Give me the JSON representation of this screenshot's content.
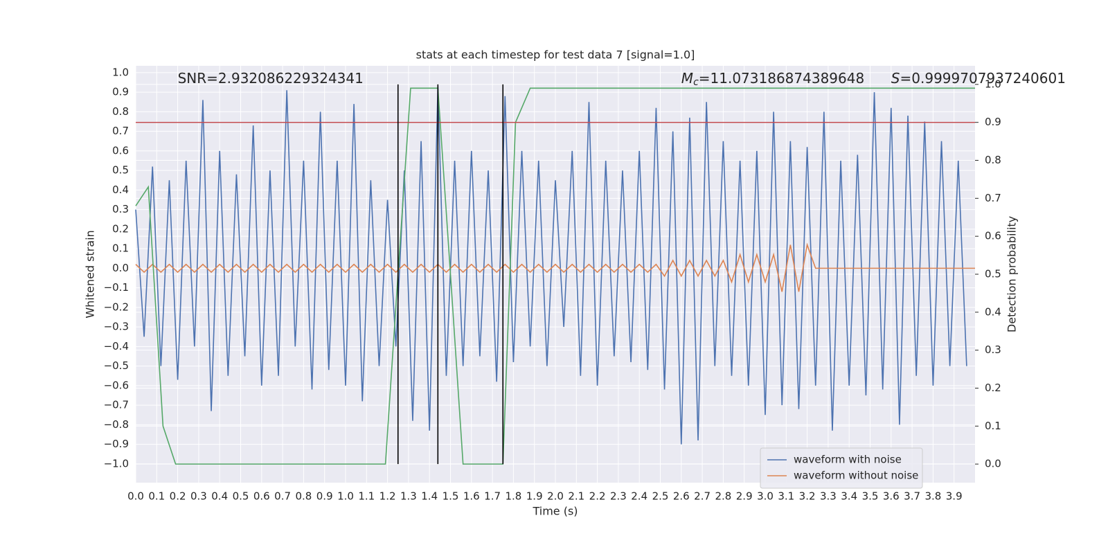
{
  "chart_data": {
    "type": "line",
    "title": "stats at each timestep for test data 7 [signal=1.0]",
    "x_label": "Time (s)",
    "y_label": "Whitened strain",
    "y2_label": "Detection probability",
    "grid": true,
    "legend": "lower right",
    "xlim": [
      0,
      4.0
    ],
    "ylim": [
      -1.096,
      1.035
    ],
    "y2lim": [
      -0.049,
      1.049
    ],
    "xticks": [
      {
        "value": 0,
        "label": "0.0"
      },
      0.1,
      0.2,
      0.3,
      0.4,
      0.5,
      0.6,
      0.7,
      0.8,
      0.9,
      {
        "value": 1,
        "label": "1.0"
      },
      1.1,
      1.2,
      1.3,
      1.4,
      1.5,
      1.6,
      1.7,
      1.8,
      1.9,
      {
        "value": 2,
        "label": "2.0"
      },
      2.1,
      2.2,
      2.3,
      2.4,
      2.5,
      2.6,
      2.7,
      2.8,
      2.9,
      {
        "value": 3,
        "label": "3.0"
      },
      3.1,
      3.2,
      3.3,
      3.4,
      3.5,
      3.6,
      3.7,
      3.8,
      3.9
    ],
    "yticks": [
      {
        "value": -1,
        "label": "−1.0"
      },
      {
        "value": -0.9,
        "label": "−0.9"
      },
      {
        "value": -0.8,
        "label": "−0.8"
      },
      {
        "value": -0.7,
        "label": "−0.7"
      },
      {
        "value": -0.6,
        "label": "−0.6"
      },
      {
        "value": -0.5,
        "label": "−0.5"
      },
      {
        "value": -0.4,
        "label": "−0.4"
      },
      {
        "value": -0.3,
        "label": "−0.3"
      },
      {
        "value": -0.2,
        "label": "−0.2"
      },
      {
        "value": -0.1,
        "label": "−0.1"
      },
      {
        "value": 0,
        "label": "0.0"
      },
      0.1,
      0.2,
      0.3,
      0.4,
      0.5,
      0.6,
      0.7,
      0.8,
      0.9,
      {
        "value": 1,
        "label": "1.0"
      }
    ],
    "y2ticks": [
      {
        "value": 0,
        "label": "0.0"
      },
      0.1,
      0.2,
      0.3,
      0.4,
      0.5,
      0.6,
      0.7,
      0.8,
      0.9,
      {
        "value": 1,
        "label": "1.0"
      }
    ],
    "series": [
      {
        "name": "waveform with noise",
        "color": "#4c72b0",
        "x": [
          0,
          0.04,
          0.08,
          0.12,
          0.16,
          0.2,
          0.24,
          0.28,
          0.32,
          0.36,
          0.4,
          0.44,
          0.48,
          0.52,
          0.56,
          0.6,
          0.64,
          0.68,
          0.72,
          0.76,
          0.8,
          0.84,
          0.88,
          0.92,
          0.96,
          1.0,
          1.04,
          1.08,
          1.12,
          1.16,
          1.2,
          1.24,
          1.28,
          1.32,
          1.36,
          1.4,
          1.44,
          1.48,
          1.52,
          1.56,
          1.6,
          1.64,
          1.68,
          1.72,
          1.76,
          1.8,
          1.84,
          1.88,
          1.92,
          1.96,
          2.0,
          2.04,
          2.08,
          2.12,
          2.16,
          2.2,
          2.24,
          2.28,
          2.32,
          2.36,
          2.4,
          2.44,
          2.48,
          2.52,
          2.56,
          2.6,
          2.64,
          2.68,
          2.72,
          2.76,
          2.8,
          2.84,
          2.88,
          2.92,
          2.96,
          3.0,
          3.04,
          3.08,
          3.12,
          3.16,
          3.2,
          3.24,
          3.28,
          3.32,
          3.36,
          3.4,
          3.44,
          3.48,
          3.52,
          3.56,
          3.6,
          3.64,
          3.68,
          3.72,
          3.76,
          3.8,
          3.84,
          3.88,
          3.92,
          3.96
        ],
        "values": [
          0.3,
          -0.35,
          0.52,
          -0.5,
          0.45,
          -0.57,
          0.55,
          -0.4,
          0.86,
          -0.73,
          0.6,
          -0.55,
          0.48,
          -0.45,
          0.73,
          -0.6,
          0.5,
          -0.55,
          0.91,
          -0.4,
          0.55,
          -0.62,
          0.8,
          -0.52,
          0.55,
          -0.6,
          0.84,
          -0.68,
          0.45,
          -0.5,
          0.35,
          -0.4,
          0.5,
          -0.78,
          0.65,
          -0.83,
          0.93,
          -0.55,
          0.55,
          -0.5,
          0.6,
          -0.45,
          0.5,
          -0.58,
          0.88,
          -0.48,
          0.6,
          -0.4,
          0.55,
          -0.5,
          0.45,
          -0.3,
          0.6,
          -0.55,
          0.85,
          -0.6,
          0.55,
          -0.45,
          0.5,
          -0.48,
          0.6,
          -0.52,
          0.82,
          -0.62,
          0.7,
          -0.9,
          0.77,
          -0.88,
          0.85,
          -0.5,
          0.65,
          -0.55,
          0.55,
          -0.6,
          0.6,
          -0.75,
          0.8,
          -0.7,
          0.65,
          -0.72,
          0.62,
          -0.6,
          0.8,
          -0.83,
          0.55,
          -0.6,
          0.58,
          -0.65,
          0.9,
          -0.62,
          0.82,
          -0.8,
          0.78,
          -0.55,
          0.75,
          -0.6,
          0.65,
          -0.5,
          0.55,
          -0.5
        ]
      },
      {
        "name": "waveform without noise",
        "color": "#dd8452",
        "x": [
          0,
          0.04,
          0.08,
          0.12,
          0.16,
          0.2,
          0.24,
          0.28,
          0.32,
          0.36,
          0.4,
          0.44,
          0.48,
          0.52,
          0.56,
          0.6,
          0.64,
          0.68,
          0.72,
          0.76,
          0.8,
          0.84,
          0.88,
          0.92,
          0.96,
          1.0,
          1.04,
          1.08,
          1.12,
          1.16,
          1.2,
          1.24,
          1.28,
          1.32,
          1.36,
          1.4,
          1.44,
          1.48,
          1.52,
          1.56,
          1.6,
          1.64,
          1.68,
          1.72,
          1.76,
          1.8,
          1.84,
          1.88,
          1.92,
          1.96,
          2.0,
          2.04,
          2.08,
          2.12,
          2.16,
          2.2,
          2.24,
          2.28,
          2.32,
          2.36,
          2.4,
          2.44,
          2.48,
          2.52,
          2.56,
          2.6,
          2.64,
          2.68,
          2.72,
          2.76,
          2.8,
          2.84,
          2.88,
          2.92,
          2.96,
          3.0,
          3.04,
          3.08,
          3.12,
          3.16,
          3.2,
          3.24,
          4.0
        ],
        "values": [
          0.02,
          -0.02,
          0.02,
          -0.02,
          0.02,
          -0.02,
          0.02,
          -0.02,
          0.02,
          -0.02,
          0.02,
          -0.02,
          0.02,
          -0.02,
          0.02,
          -0.02,
          0.02,
          -0.02,
          0.02,
          -0.02,
          0.02,
          -0.02,
          0.02,
          -0.02,
          0.02,
          -0.02,
          0.02,
          -0.02,
          0.02,
          -0.02,
          0.02,
          -0.02,
          0.02,
          -0.02,
          0.02,
          -0.02,
          0.02,
          -0.02,
          0.02,
          -0.02,
          0.02,
          -0.02,
          0.02,
          -0.02,
          0.02,
          -0.02,
          0.02,
          -0.02,
          0.02,
          -0.02,
          0.02,
          -0.02,
          0.02,
          -0.02,
          0.02,
          -0.02,
          0.02,
          -0.02,
          0.02,
          -0.02,
          0.02,
          -0.02,
          0.02,
          -0.04,
          0.04,
          -0.04,
          0.04,
          -0.04,
          0.04,
          -0.04,
          0.04,
          -0.07,
          0.07,
          -0.07,
          0.07,
          -0.07,
          0.07,
          -0.12,
          0.12,
          -0.12,
          0.12,
          0,
          0
        ]
      },
      {
        "color": "#55a868",
        "axis": "y2",
        "x": [
          0,
          0.06,
          0.13,
          0.19,
          1.19,
          1.25,
          1.31,
          1.38,
          1.44,
          1.5,
          1.56,
          1.69,
          1.75,
          1.81,
          1.88,
          4.0
        ],
        "values": [
          0.68,
          0.73,
          0.1,
          0,
          0,
          0.5,
          0.99,
          0.99,
          0.99,
          0.5,
          0,
          0,
          0,
          0.9,
          0.99,
          0.99
        ]
      }
    ],
    "hline": {
      "axis": "y2",
      "y": 0.9,
      "color": "#c44e52"
    },
    "vlines": {
      "axis": "y2",
      "x": [
        1.25,
        1.44,
        1.75
      ],
      "ymin": 0,
      "ymax": 1,
      "color": "#000000"
    },
    "annotations": [
      {
        "x": 0.2,
        "text": "SNR=2.932086229324341"
      },
      {
        "x": 2.6,
        "symbol": "M",
        "sub": "c",
        "text": "=11.073186874389648"
      },
      {
        "x": 3.6,
        "symbol": "S",
        "text": "=0.9999707937240601"
      }
    ]
  }
}
